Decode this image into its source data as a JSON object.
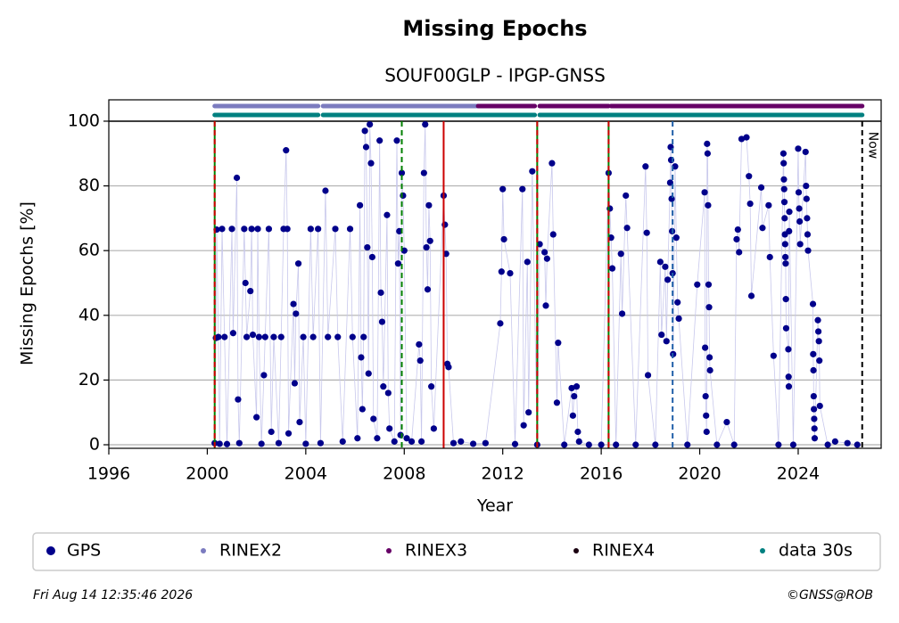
{
  "chart_data": {
    "type": "scatter",
    "title": "Missing Epochs",
    "subtitle": "SOUF00GLP - IPGP-GNSS",
    "xlabel": "Year",
    "ylabel": "Missing Epochs [%]",
    "xlim": [
      1996,
      2027.37
    ],
    "ylim": [
      -1.1,
      106.6
    ],
    "xticks": [
      1996,
      2000,
      2004,
      2008,
      2012,
      2016,
      2020,
      2024
    ],
    "yticks": [
      0,
      20,
      40,
      60,
      80,
      100
    ],
    "grid": true,
    "series": [
      {
        "name": "GPS",
        "color": "#00008b",
        "x": [
          2000.3,
          2000.35,
          2000.38,
          2000.45,
          2000.5,
          2000.6,
          2000.7,
          2000.8,
          2001.0,
          2001.05,
          2001.2,
          2001.25,
          2001.3,
          2001.5,
          2001.55,
          2001.6,
          2001.75,
          2001.8,
          2001.85,
          2002.0,
          2002.05,
          2002.1,
          2002.2,
          2002.3,
          2002.35,
          2002.5,
          2002.6,
          2002.7,
          2002.9,
          2003.0,
          2003.1,
          2003.2,
          2003.25,
          2003.3,
          2003.5,
          2003.55,
          2003.6,
          2003.7,
          2003.75,
          2003.9,
          2004.0,
          2004.2,
          2004.3,
          2004.5,
          2004.6,
          2004.8,
          2004.9,
          2005.2,
          2005.3,
          2005.5,
          2005.8,
          2005.9,
          2006.1,
          2006.2,
          2006.25,
          2006.3,
          2006.35,
          2006.4,
          2006.45,
          2006.5,
          2006.55,
          2006.6,
          2006.65,
          2006.7,
          2006.75,
          2006.9,
          2007.0,
          2007.05,
          2007.1,
          2007.15,
          2007.3,
          2007.35,
          2007.4,
          2007.6,
          2007.7,
          2007.75,
          2007.8,
          2007.85,
          2007.9,
          2007.95,
          2008.0,
          2008.1,
          2008.3,
          2008.6,
          2008.65,
          2008.7,
          2008.8,
          2008.85,
          2008.9,
          2008.95,
          2009.0,
          2009.05,
          2009.1,
          2009.2,
          2009.6,
          2009.65,
          2009.7,
          2009.75,
          2009.8,
          2010.0,
          2010.3,
          2010.8,
          2011.3,
          2011.9,
          2011.95,
          2012.0,
          2012.05,
          2012.3,
          2012.5,
          2012.8,
          2012.85,
          2013.0,
          2013.05,
          2013.2,
          2013.4,
          2013.5,
          2013.7,
          2013.75,
          2013.8,
          2014.0,
          2014.05,
          2014.2,
          2014.25,
          2014.5,
          2014.8,
          2014.85,
          2014.9,
          2015.0,
          2015.05,
          2015.1,
          2015.5,
          2016.0,
          2016.3,
          2016.35,
          2016.4,
          2016.45,
          2016.6,
          2016.8,
          2016.85,
          2017.0,
          2017.05,
          2017.4,
          2017.8,
          2017.85,
          2017.9,
          2018.2,
          2018.4,
          2018.45,
          2018.6,
          2018.65,
          2018.7,
          2018.8,
          2018.82,
          2018.84,
          2018.86,
          2018.88,
          2018.9,
          2018.92,
          2019.0,
          2019.05,
          2019.1,
          2019.15,
          2019.5,
          2019.9,
          2020.2,
          2020.22,
          2020.24,
          2020.26,
          2020.28,
          2020.3,
          2020.32,
          2020.34,
          2020.36,
          2020.38,
          2020.4,
          2020.42,
          2020.7,
          2021.1,
          2021.4,
          2021.5,
          2021.55,
          2021.6,
          2021.7,
          2021.9,
          2022.0,
          2022.05,
          2022.1,
          2022.5,
          2022.55,
          2022.8,
          2022.85,
          2023.0,
          2023.2,
          2023.4,
          2023.41,
          2023.42,
          2023.43,
          2023.44,
          2023.45,
          2023.46,
          2023.47,
          2023.48,
          2023.49,
          2023.5,
          2023.51,
          2023.6,
          2023.61,
          2023.62,
          2023.63,
          2023.64,
          2023.8,
          2024.0,
          2024.02,
          2024.04,
          2024.06,
          2024.08,
          2024.3,
          2024.32,
          2024.34,
          2024.36,
          2024.38,
          2024.4,
          2024.6,
          2024.61,
          2024.62,
          2024.63,
          2024.64,
          2024.65,
          2024.66,
          2024.67,
          2024.8,
          2024.82,
          2024.84,
          2024.86,
          2024.88,
          2025.2,
          2025.5,
          2026.0,
          2026.4
        ],
        "values": [
          0.5,
          33,
          66.5,
          33.3,
          0.3,
          66.7,
          33.3,
          0.2,
          66.7,
          34.5,
          82.5,
          14,
          0.5,
          66.7,
          50,
          33.3,
          47.5,
          66.7,
          34,
          8.5,
          66.7,
          33.3,
          0.3,
          21.5,
          33.3,
          66.7,
          4,
          33.3,
          0.5,
          33.3,
          66.7,
          91,
          66.7,
          3.5,
          43.5,
          19,
          40.5,
          56,
          7,
          33.3,
          0.3,
          66.7,
          33.3,
          66.7,
          0.5,
          78.5,
          33.3,
          66.7,
          33.3,
          1,
          66.7,
          33.3,
          2,
          74,
          27,
          11,
          33.3,
          97,
          92,
          61,
          22,
          99,
          87,
          58,
          8,
          2,
          94,
          47,
          38,
          18,
          71,
          16,
          5,
          1,
          94,
          56,
          66,
          3,
          84,
          77,
          60,
          2,
          1,
          31,
          26,
          1,
          84,
          99,
          61,
          48,
          74,
          63,
          18,
          5,
          77,
          68,
          59,
          25,
          24,
          0.5,
          1,
          0.3,
          0.5,
          37.5,
          53.5,
          79,
          63.5,
          53,
          0.2,
          79,
          6,
          56.5,
          10,
          84.5,
          0,
          62,
          59.5,
          43,
          57.5,
          87,
          65,
          13,
          31.5,
          0,
          17.5,
          9,
          15,
          18,
          4,
          1,
          0,
          0,
          84,
          73,
          64,
          54.5,
          0,
          59,
          40.5,
          77,
          67,
          0,
          86,
          65.5,
          21.5,
          0,
          56.5,
          34,
          55,
          32,
          51,
          81,
          92,
          88,
          76,
          66,
          53,
          28,
          86,
          64,
          44,
          39,
          0,
          49.5,
          78,
          30,
          15,
          9,
          4,
          93,
          90,
          74,
          49.5,
          42.5,
          27,
          23,
          0,
          7,
          0,
          63.5,
          66.5,
          59.5,
          94.5,
          95,
          83,
          74.5,
          46,
          79.5,
          67,
          74,
          58,
          27.5,
          0,
          90,
          87,
          82,
          79,
          75,
          70,
          65,
          62,
          58,
          56,
          45,
          36,
          29.5,
          21,
          18,
          66,
          72,
          0,
          91.5,
          78,
          73,
          69,
          62,
          90.5,
          80,
          76,
          70,
          65,
          60,
          43.5,
          28,
          23,
          15,
          11,
          8,
          5,
          2,
          38.5,
          35,
          32,
          26,
          12,
          0,
          1,
          0.5,
          0
        ]
      },
      {
        "name": "RINEX2",
        "color": "#7b7bbf",
        "segments": [
          [
            2000.3,
            2004.5
          ],
          [
            2004.7,
            2011.0
          ]
        ]
      },
      {
        "name": "RINEX3",
        "color": "#660066",
        "segments": [
          [
            2011.0,
            2013.3
          ],
          [
            2013.5,
            2016.3
          ],
          [
            2016.4,
            2026.6
          ]
        ]
      },
      {
        "name": "RINEX4",
        "color": "#1a0010",
        "segments": []
      },
      {
        "name": "data 30s",
        "color": "#008080",
        "segments": [
          [
            2000.3,
            2004.5
          ],
          [
            2004.7,
            2013.3
          ],
          [
            2013.5,
            2026.6
          ]
        ]
      }
    ],
    "vlines": [
      {
        "x": 2000.3,
        "color": "#008000",
        "dash": false
      },
      {
        "x": 2000.3,
        "color": "#cc0000",
        "dash": true
      },
      {
        "x": 2007.9,
        "color": "#008000",
        "dash": true
      },
      {
        "x": 2009.6,
        "color": "#cc0000",
        "dash": false
      },
      {
        "x": 2013.4,
        "color": "#008000",
        "dash": false
      },
      {
        "x": 2013.4,
        "color": "#cc0000",
        "dash": true
      },
      {
        "x": 2016.3,
        "color": "#008000",
        "dash": false
      },
      {
        "x": 2016.3,
        "color": "#cc0000",
        "dash": true
      },
      {
        "x": 2018.9,
        "color": "#1f5fa8",
        "dash": true
      },
      {
        "x": 2026.6,
        "color": "#000000",
        "dash": true
      }
    ],
    "annotation": "Now",
    "timestamp": "Fri Aug 14 12:35:46 2026",
    "credit": "©GNSS@ROB"
  }
}
